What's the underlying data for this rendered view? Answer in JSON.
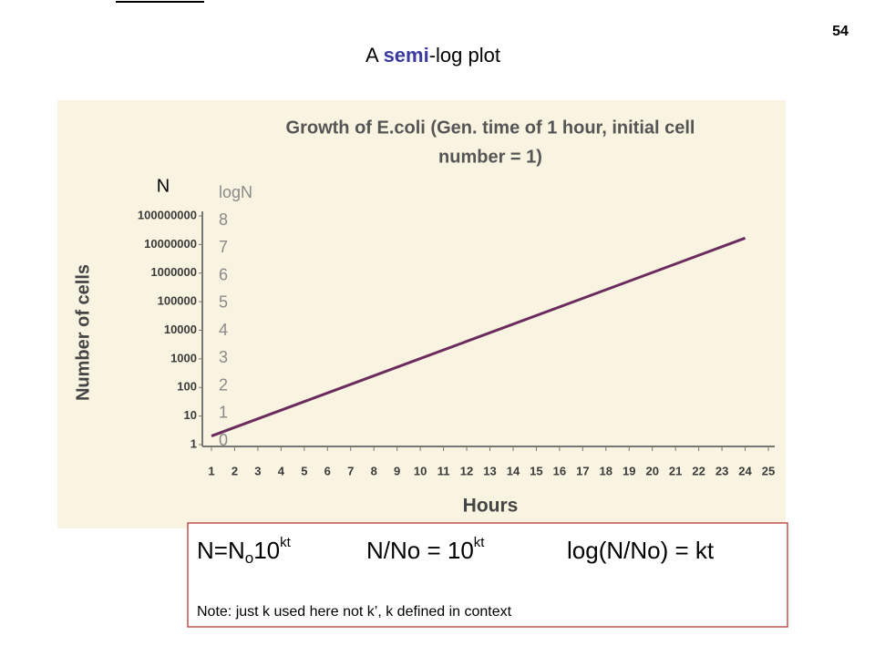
{
  "slide": {
    "number": "54",
    "title_parts": [
      "A ",
      "semi",
      "-log plot"
    ]
  },
  "chart_data": {
    "type": "line",
    "title_lines": [
      "Growth of E.coli (Gen. time of 1 hour, initial cell",
      "number = 1)"
    ],
    "x_label": "Hours",
    "y_label": "Number of cells",
    "x": [
      1,
      24
    ],
    "series": [
      {
        "name": "E.coli",
        "color": "#6b2b5e",
        "values": [
          2,
          16777216
        ]
      }
    ],
    "xlim": [
      1,
      25
    ],
    "xticks": [
      1,
      2,
      3,
      4,
      5,
      6,
      7,
      8,
      9,
      10,
      11,
      12,
      13,
      14,
      15,
      16,
      17,
      18,
      19,
      20,
      21,
      22,
      23,
      24,
      25
    ],
    "y_log_scale": true,
    "ylim": [
      1,
      100000000
    ],
    "yticks": [
      1,
      10,
      100,
      1000,
      10000,
      100000,
      1000000,
      10000000,
      100000000
    ],
    "grid": false,
    "overlay": {
      "n_label": "N",
      "logn_label": "logN",
      "logn_ticks": [
        8,
        7,
        6,
        5,
        4,
        3,
        2,
        1,
        0
      ]
    }
  },
  "formula": {
    "lhs": [
      "N=N",
      "o",
      "10",
      "kt"
    ],
    "ratio": [
      "N/No = 10",
      "kt"
    ],
    "log": "log(N/No) = kt",
    "note": "Note: just k used here not k’, k defined in context"
  }
}
